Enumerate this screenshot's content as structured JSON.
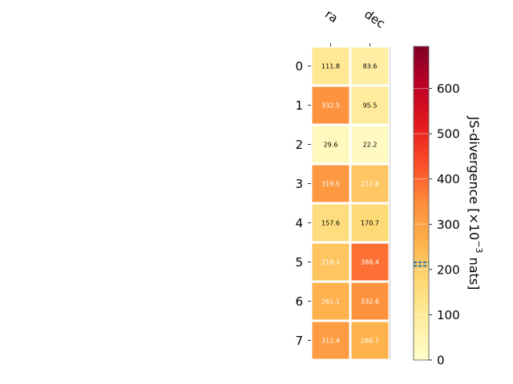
{
  "chart_data": {
    "type": "heatmap",
    "columns": [
      "ra",
      "dec"
    ],
    "rows": [
      "0",
      "1",
      "2",
      "3",
      "4",
      "5",
      "6",
      "7"
    ],
    "values": [
      [
        111.8,
        83.6
      ],
      [
        332.5,
        95.5
      ],
      [
        29.6,
        22.2
      ],
      [
        319.5,
        212.6
      ],
      [
        157.6,
        170.7
      ],
      [
        218.3,
        388.4
      ],
      [
        261.1,
        332.6
      ],
      [
        312.4,
        260.7
      ]
    ],
    "value_labels": [
      [
        "111.8",
        "83.6"
      ],
      [
        "332.5",
        "95.5"
      ],
      [
        "29.6",
        "22.2"
      ],
      [
        "319.5",
        "212.6"
      ],
      [
        "157.6",
        "170.7"
      ],
      [
        "218.3",
        "388.4"
      ],
      [
        "261.1",
        "332.6"
      ],
      [
        "312.4",
        "260.7"
      ]
    ],
    "colorbar": {
      "label_prefix": "JS-divergence [×10",
      "label_exponent": "−3",
      "label_suffix": " nats]",
      "range": [
        0,
        693
      ],
      "ticks": [
        0,
        100,
        200,
        300,
        400,
        500,
        600
      ],
      "tick_labels": [
        "0",
        "100",
        "200",
        "300",
        "400",
        "500",
        "600"
      ],
      "threshold_lines": [
        208.0,
        216.0
      ],
      "threshold_color": "#1f77b4",
      "colormap": "YlOrRd"
    }
  }
}
